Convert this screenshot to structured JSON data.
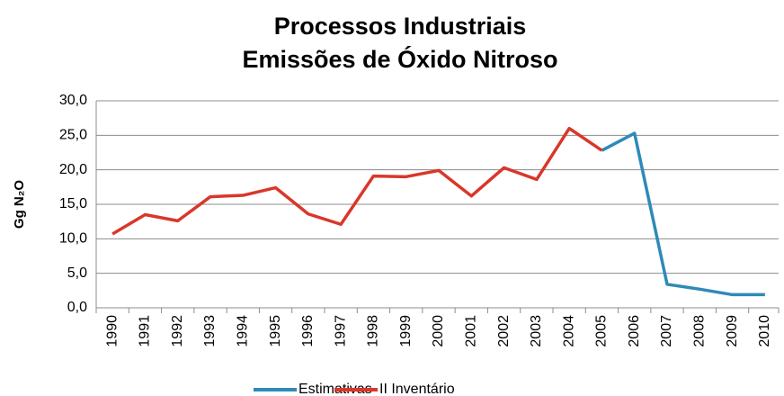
{
  "chart_data": {
    "type": "line",
    "title": "Processos Industriais",
    "subtitle": "Emissões de Óxido Nitroso",
    "ylabel": "Gg N₂O",
    "categories": [
      "1990",
      "1991",
      "1992",
      "1993",
      "1994",
      "1995",
      "1996",
      "1997",
      "1998",
      "1999",
      "2000",
      "2001",
      "2002",
      "2003",
      "2004",
      "2005",
      "2006",
      "2007",
      "2008",
      "2009",
      "2010"
    ],
    "series": [
      {
        "name": "Estimativas",
        "color": "#2e8ab8",
        "values": [
          null,
          null,
          null,
          null,
          null,
          null,
          null,
          null,
          null,
          null,
          null,
          null,
          null,
          null,
          null,
          22.8,
          25.3,
          3.4,
          2.7,
          1.9,
          1.9
        ]
      },
      {
        "name": "II Inventário",
        "color": "#d9372a",
        "values": [
          10.7,
          13.5,
          12.6,
          16.1,
          16.3,
          17.4,
          13.6,
          12.1,
          19.1,
          19.0,
          19.9,
          16.2,
          20.3,
          18.6,
          26.0,
          22.8,
          null,
          null,
          null,
          null,
          null
        ]
      }
    ],
    "ylim": [
      0,
      30
    ],
    "yticks": [
      {
        "value": 0,
        "label": "0,0"
      },
      {
        "value": 5,
        "label": "5,0"
      },
      {
        "value": 10,
        "label": "10,0"
      },
      {
        "value": 15,
        "label": "15,0"
      },
      {
        "value": 20,
        "label": "20,0"
      },
      {
        "value": 25,
        "label": "25,0"
      },
      {
        "value": 30,
        "label": "30,0"
      }
    ],
    "grid": true,
    "legend": "bottom"
  }
}
